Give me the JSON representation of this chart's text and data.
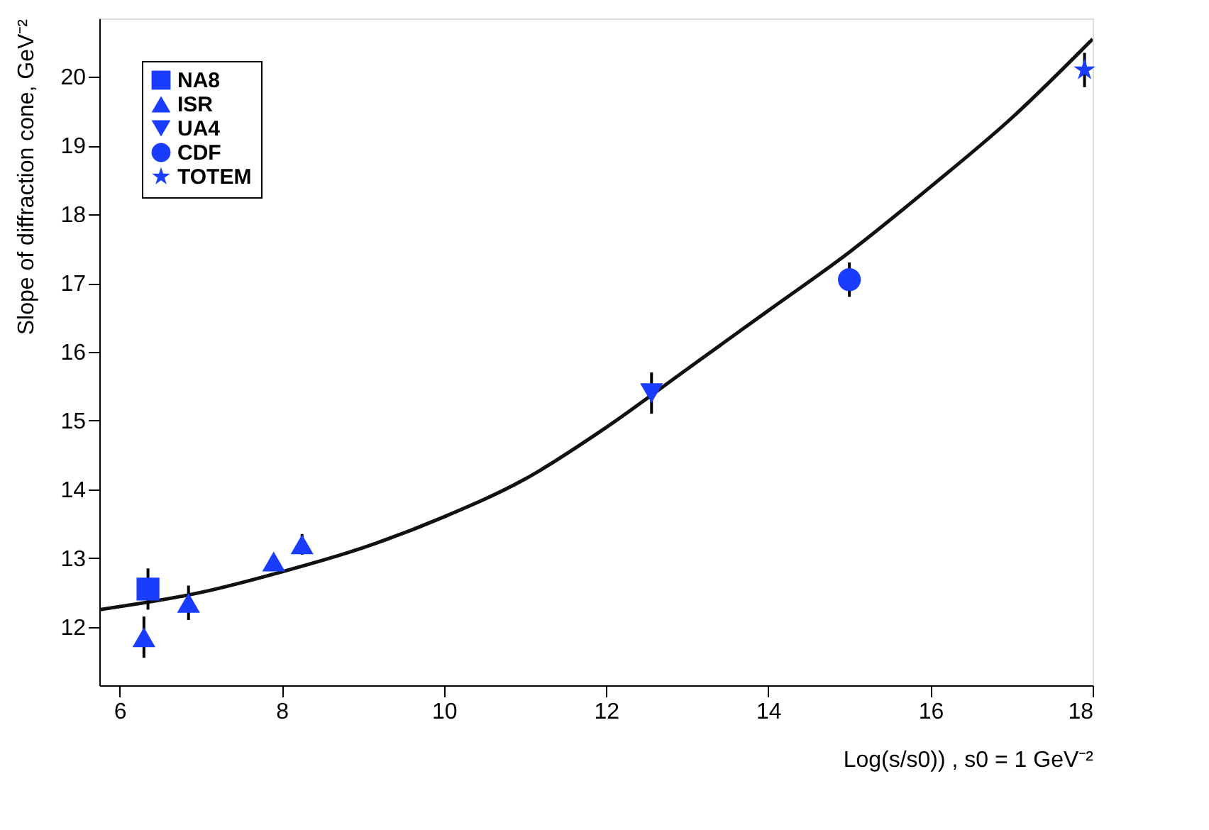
{
  "chart_data": {
    "type": "scatter",
    "xlabel": "Log(s/s0)) , s0 = 1 GeV⁻²",
    "ylabel": "Slope of diffraction cone, GeV⁻²",
    "xlim": [
      5.75,
      18
    ],
    "ylim": [
      11.15,
      20.85
    ],
    "xticks": [
      6,
      8,
      10,
      12,
      14,
      16,
      18
    ],
    "yticks": [
      12,
      13,
      14,
      15,
      16,
      17,
      18,
      19,
      20
    ],
    "grid": false,
    "legend": "top left",
    "series": [
      {
        "name": "NA8",
        "color": "#1a3cff",
        "marker": "square",
        "x": [
          6.35
        ],
        "values": [
          12.55
        ],
        "errors": [
          0.3
        ]
      },
      {
        "name": "ISR",
        "color": "#1a3cff",
        "marker": "triangle",
        "x": [
          6.3,
          6.85,
          7.9,
          8.25
        ],
        "values": [
          11.85,
          12.35,
          12.95,
          13.2
        ],
        "errors": [
          0.3,
          0.25,
          null,
          0.15
        ]
      },
      {
        "name": "UA4",
        "color": "#1a3cff",
        "marker": "triangle-down",
        "x": [
          12.56
        ],
        "values": [
          15.4
        ],
        "errors": [
          0.3
        ]
      },
      {
        "name": "CDF",
        "color": "#1a3cff",
        "marker": "circle",
        "x": [
          15.0
        ],
        "values": [
          17.05
        ],
        "errors": [
          0.25
        ]
      },
      {
        "name": "TOTEM",
        "color": "#1a3cff",
        "marker": "star",
        "x": [
          17.9
        ],
        "values": [
          20.1
        ],
        "errors": [
          0.25
        ]
      },
      {
        "type": "line",
        "color": "#111111",
        "marker": "none",
        "line_style": "solid",
        "x": [
          5.75,
          7,
          8,
          9,
          10,
          11,
          12,
          13,
          14,
          15,
          16,
          17,
          18
        ],
        "values": [
          12.25,
          12.5,
          12.8,
          13.15,
          13.6,
          14.15,
          14.9,
          15.75,
          16.6,
          17.45,
          18.4,
          19.4,
          20.55
        ]
      }
    ]
  }
}
